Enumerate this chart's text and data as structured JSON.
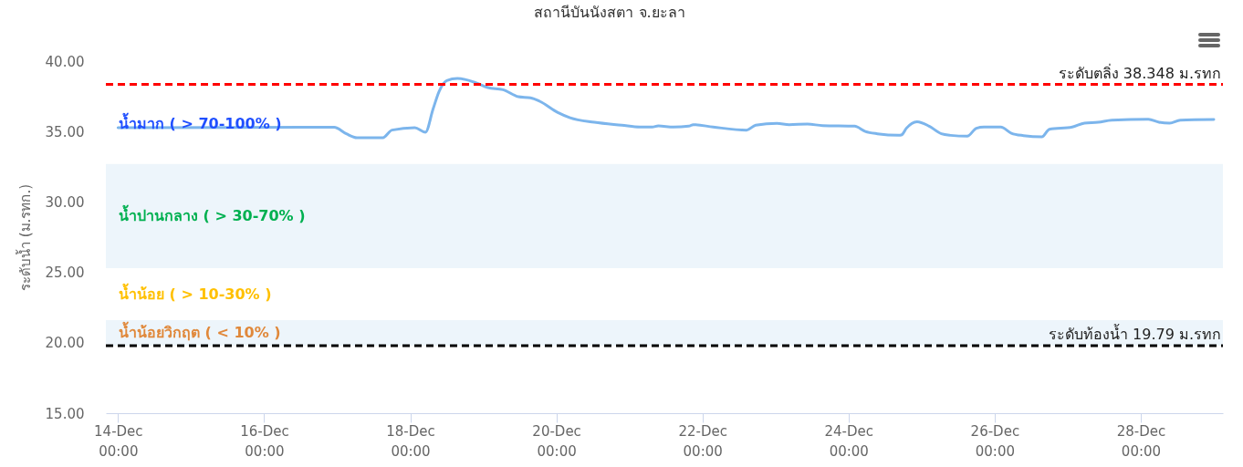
{
  "chart_data": {
    "type": "line",
    "title": "สถานีบันนังสตา จ.ยะลา",
    "ylabel": "ระดับน้ำ (ม.รทก.)",
    "x": [
      "--12-14T00:00",
      "--12-16T23:00",
      "--12-17T03:00",
      "--12-17T06:30",
      "--12-17T15:00",
      "--12-17T18:00",
      "--12-18T01:30",
      "--12-18T05:00",
      "--12-18T07:30",
      "--12-18T09:30",
      "--12-18T12:00",
      "--12-18T15:30",
      "--12-18T21:30",
      "--12-19T01:30",
      "--12-19T06:30",
      "--12-19T11:30",
      "--12-19T15:30",
      "--12-19T18:30",
      "--12-20T00:30",
      "--12-20T04:30",
      "--12-20T12:30",
      "--12-20T21:30",
      "--12-21T03:30",
      "--12-21T07:30",
      "--12-21T09:30",
      "--12-21T14:30",
      "--12-21T19:30",
      "--12-21T21:00",
      "--12-22T03:30",
      "--12-22T14:30",
      "--12-22T17:30",
      "--12-23T00:30",
      "--12-23T04:30",
      "--12-23T10:30",
      "--12-23T15:30",
      "--12-24T02:00",
      "--12-24T05:30",
      "--12-24T09:30",
      "--12-24T16:30",
      "--12-24T17:30",
      "--12-24T19:00",
      "--12-24T22:30",
      "--12-25T02:30",
      "--12-25T06:30",
      "--12-25T09:30",
      "--12-25T15:00",
      "--12-25T18:00",
      "--12-25T20:30",
      "--12-26T02:00",
      "--12-26T05:30",
      "--12-26T09:30",
      "--12-26T15:30",
      "--12-26T18:00",
      "--12-27T01:30",
      "--12-27T05:30",
      "--12-27T10:00",
      "--12-27T14:30",
      "--12-28T02:30",
      "--12-28T06:00",
      "--12-28T09:30",
      "--12-28T13:00",
      "--12-29T00:00"
    ],
    "series": [
      {
        "color": "#7cb5ec",
        "values": [
          35.27,
          35.3,
          34.84,
          34.56,
          34.56,
          35.1,
          35.27,
          34.95,
          36.6,
          37.86,
          38.62,
          38.77,
          38.47,
          38.12,
          37.97,
          37.47,
          37.39,
          37.15,
          36.35,
          35.98,
          35.66,
          35.45,
          35.32,
          35.32,
          35.4,
          35.32,
          35.38,
          35.49,
          35.32,
          35.1,
          35.45,
          35.58,
          35.49,
          35.53,
          35.42,
          35.38,
          35.01,
          34.84,
          34.73,
          34.77,
          35.23,
          35.7,
          35.38,
          34.84,
          34.73,
          34.67,
          35.23,
          35.32,
          35.32,
          34.88,
          34.71,
          34.62,
          35.16,
          35.32,
          35.6,
          35.66,
          35.81,
          35.87,
          35.66,
          35.6,
          35.81,
          35.85
        ]
      }
    ],
    "xlim": [
      "--12-13T20:00",
      "--12-29T03:00"
    ],
    "xticks": [
      {
        "value": "--12-14T00:00",
        "label": "14-Dec\n00:00"
      },
      {
        "value": "--12-16T00:00",
        "label": "16-Dec\n00:00"
      },
      {
        "value": "--12-18T00:00",
        "label": "18-Dec\n00:00"
      },
      {
        "value": "--12-20T00:00",
        "label": "20-Dec\n00:00"
      },
      {
        "value": "--12-22T00:00",
        "label": "22-Dec\n00:00"
      },
      {
        "value": "--12-24T00:00",
        "label": "24-Dec\n00:00"
      },
      {
        "value": "--12-26T00:00",
        "label": "26-Dec\n00:00"
      },
      {
        "value": "--12-28T00:00",
        "label": "28-Dec\n00:00"
      }
    ],
    "ylim": [
      15,
      40
    ],
    "yticks": [
      {
        "value": 15,
        "label": "15.00"
      },
      {
        "value": 20,
        "label": "20.00"
      },
      {
        "value": 25,
        "label": "25.00"
      },
      {
        "value": 30,
        "label": "30.00"
      },
      {
        "value": 35,
        "label": "35.00"
      },
      {
        "value": 40,
        "label": "40.00"
      }
    ],
    "ref_lines": [
      {
        "axis": "y",
        "value": 38.348,
        "label": "ระดับตลิ่ง 38.348 ม.รทก",
        "color": "#ff0000",
        "line_style": "dashed"
      },
      {
        "axis": "y",
        "value": 19.79,
        "label": "ระดับท้องน้ำ 19.79 ม.รทก",
        "color": "#000000",
        "line_style": "dashed"
      }
    ],
    "bands": [
      {
        "axis": "y",
        "from": 25.3,
        "to": 32.7,
        "label": "น้ำปานกลาง ( > 30-70% )",
        "color": "#edf5fb"
      },
      {
        "axis": "y",
        "from": 19.79,
        "to": 21.6,
        "label": "น้ำน้อยวิกฤต ( < 10% )",
        "color": "#edf5fb"
      }
    ],
    "annotations": [
      "น้ำมาก ( > 70-100% )",
      "น้ำน้อย ( > 10-30% )"
    ],
    "grid": false,
    "marker": "none",
    "line_style": "solid"
  }
}
